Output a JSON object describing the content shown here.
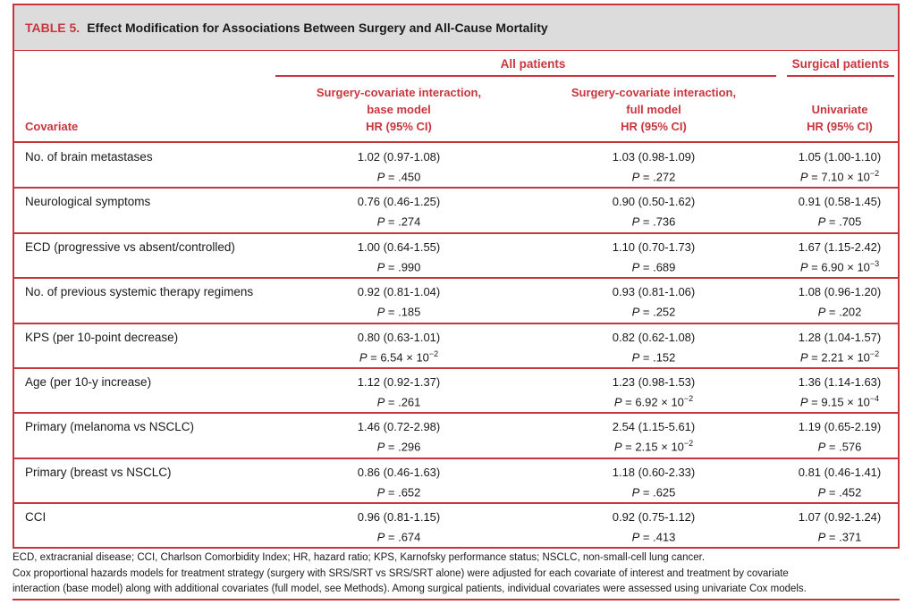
{
  "table": {
    "label": "TABLE 5.",
    "title": "Effect Modification for Associations Between Surgery and All-Cause Mortality",
    "group_all": "All patients",
    "group_surgical": "Surgical patients",
    "covariate_header": "Covariate",
    "col1_head": [
      "Surgery-covariate interaction,",
      "base model",
      "HR (95% CI)"
    ],
    "col2_head": [
      "Surgery-covariate interaction,",
      "full model",
      "HR (95% CI)"
    ],
    "col3_head": [
      "Univariate",
      "HR (95% CI)"
    ],
    "p_label": "P",
    "rows": [
      {
        "covariate": "No. of brain metastases",
        "c1": "1.02 (0.97-1.08)",
        "p1": "= .450",
        "c2": "1.03 (0.98-1.09)",
        "p2": "= .272",
        "c3": "1.05 (1.00-1.10)",
        "p3": "= 7.10 × 10",
        "p3exp": "−2"
      },
      {
        "covariate": "Neurological symptoms",
        "c1": "0.76 (0.46-1.25)",
        "p1": "= .274",
        "c2": "0.90 (0.50-1.62)",
        "p2": "= .736",
        "c3": "0.91 (0.58-1.45)",
        "p3": "= .705",
        "p3exp": ""
      },
      {
        "covariate": "ECD (progressive vs absent/controlled)",
        "c1": "1.00 (0.64-1.55)",
        "p1": "= .990",
        "c2": "1.10 (0.70-1.73)",
        "p2": "= .689",
        "c3": "1.67 (1.15-2.42)",
        "p3": "= 6.90 × 10",
        "p3exp": "−3"
      },
      {
        "covariate": "No. of previous systemic therapy regimens",
        "c1": "0.92 (0.81-1.04)",
        "p1": "= .185",
        "c2": "0.93 (0.81-1.06)",
        "p2": "= .252",
        "c3": "1.08 (0.96-1.20)",
        "p3": "= .202",
        "p3exp": ""
      },
      {
        "covariate": "KPS (per 10-point decrease)",
        "c1": "0.80 (0.63-1.01)",
        "p1": "= 6.54 × 10",
        "p1exp": "−2",
        "c2": "0.82 (0.62-1.08)",
        "p2": "= .152",
        "c3": "1.28 (1.04-1.57)",
        "p3": "= 2.21 × 10",
        "p3exp": "−2"
      },
      {
        "covariate": "Age (per 10-y increase)",
        "c1": "1.12 (0.92-1.37)",
        "p1": "= .261",
        "c2": "1.23 (0.98-1.53)",
        "p2": "= 6.92 × 10",
        "p2exp": "−2",
        "c3": "1.36 (1.14-1.63)",
        "p3": "= 9.15 × 10",
        "p3exp": "−4"
      },
      {
        "covariate": "Primary (melanoma vs NSCLC)",
        "c1": "1.46 (0.72-2.98)",
        "p1": "= .296",
        "c2": "2.54 (1.15-5.61)",
        "p2": "= 2.15 × 10",
        "p2exp": "−2",
        "c3": "1.19 (0.65-2.19)",
        "p3": "= .576",
        "p3exp": ""
      },
      {
        "covariate": "Primary (breast vs NSCLC)",
        "c1": "0.86 (0.46-1.63)",
        "p1": "= .652",
        "c2": "1.18 (0.60-2.33)",
        "p2": "= .625",
        "c3": "0.81 (0.46-1.41)",
        "p3": "= .452",
        "p3exp": ""
      },
      {
        "covariate": "CCI",
        "c1": "0.96 (0.81-1.15)",
        "p1": "= .674",
        "c2": "0.92 (0.75-1.12)",
        "p2": "= .413",
        "c3": "1.07 (0.92-1.24)",
        "p3": "= .371",
        "p3exp": ""
      }
    ],
    "footnotes": [
      "ECD, extracranial disease; CCI, Charlson Comorbidity Index; HR, hazard ratio; KPS, Karnofsky performance status; NSCLC, non-small-cell lung cancer.",
      "Cox proportional hazards models for treatment strategy (surgery with SRS/SRT vs SRS/SRT alone) were adjusted for each covariate of interest and treatment by covariate",
      "interaction (base model) along with additional covariates (full model, see Methods). Among surgical patients, individual covariates were assessed using univariate Cox models."
    ]
  }
}
